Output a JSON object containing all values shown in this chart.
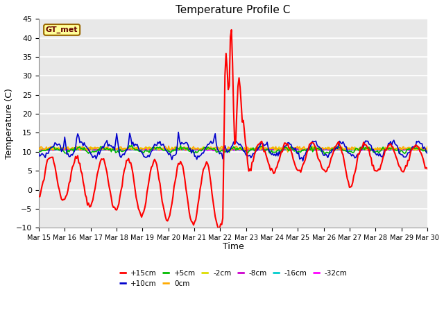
{
  "title": "Temperature Profile C",
  "xlabel": "Time",
  "ylabel": "Temperature (C)",
  "ylim": [
    -10,
    45
  ],
  "xlim": [
    0,
    15
  ],
  "x_tick_labels": [
    "Mar 15",
    "Mar 16",
    "Mar 17",
    "Mar 18",
    "Mar 19",
    "Mar 20",
    "Mar 21",
    "Mar 22",
    "Mar 23",
    "Mar 24",
    "Mar 25",
    "Mar 26",
    "Mar 27",
    "Mar 28",
    "Mar 29",
    "Mar 30"
  ],
  "series_colors": {
    "+15cm": "#ff0000",
    "+10cm": "#0000cc",
    "+5cm": "#00bb00",
    "0cm": "#ffaa00",
    "-2cm": "#dddd00",
    "-8cm": "#cc00cc",
    "-16cm": "#00cccc",
    "-32cm": "#ff00ff"
  },
  "legend_box_label": "GT_met",
  "legend_box_color": "#ffff99",
  "legend_box_border": "#996600",
  "plot_bg": "#e8e8e8",
  "grid_color": "#ffffff",
  "hours_per_day": 24,
  "n_days": 15,
  "pts_per_day": 24
}
